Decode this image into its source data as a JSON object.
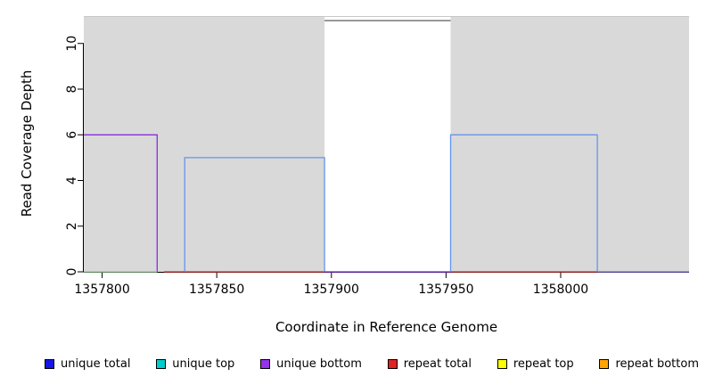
{
  "figure": {
    "xlabel": "Coordinate in Reference Genome",
    "ylabel": "Read Coverage Depth"
  },
  "legend": {
    "items": [
      {
        "label": "unique total",
        "color": "#1515e6"
      },
      {
        "label": "unique top",
        "color": "#00cdcd"
      },
      {
        "label": "unique bottom",
        "color": "#9632e8"
      },
      {
        "label": "repeat total",
        "color": "#e02222"
      },
      {
        "label": "repeat top",
        "color": "#ffff00"
      },
      {
        "label": "repeat bottom",
        "color": "#ffa500"
      }
    ]
  },
  "chart_data": {
    "type": "line",
    "title": "",
    "xlabel": "Coordinate in Reference Genome",
    "ylabel": "Read Coverage Depth",
    "xlim": [
      1357792,
      1358056
    ],
    "ylim": [
      0,
      11.2
    ],
    "x_ticks": [
      1357800,
      1357850,
      1357900,
      1357950,
      1358000
    ],
    "y_ticks": [
      0,
      2,
      4,
      6,
      8,
      10
    ],
    "grid": false,
    "legend_position": "bottom",
    "axis_color": "#000000",
    "plot_background": {
      "color": "#d9d9d9",
      "top_edge_color": "#c8c8c8"
    },
    "white_window": {
      "x0": 1357897,
      "x1": 1357952,
      "y0": 0,
      "y1": 11,
      "top_border_color": "#5a5a5a"
    },
    "series": [
      {
        "name": "unique-bottom-step-6",
        "color": "#8b2be2",
        "points": [
          [
            1357792,
            6
          ],
          [
            1357824,
            6
          ],
          [
            1357824,
            0
          ]
        ]
      },
      {
        "name": "baseline-green-left",
        "color": "#98d898",
        "points": [
          [
            1357792,
            0
          ],
          [
            1357824,
            0
          ]
        ]
      },
      {
        "name": "repeat-total-baseline-left",
        "color": "#e03030",
        "points": [
          [
            1357827,
            0
          ],
          [
            1357897,
            0
          ]
        ]
      },
      {
        "name": "unique-coverage-rect-5",
        "color": "#6495ed",
        "points": [
          [
            1357836,
            0
          ],
          [
            1357836,
            5
          ],
          [
            1357897,
            5
          ],
          [
            1357897,
            0
          ]
        ]
      },
      {
        "name": "gap-baseline-purple",
        "color": "#8b2be2",
        "points": [
          [
            1357897,
            0
          ],
          [
            1357952,
            0
          ]
        ]
      },
      {
        "name": "repeat-total-baseline-right",
        "color": "#e03030",
        "points": [
          [
            1357952,
            0
          ],
          [
            1358016,
            0
          ]
        ]
      },
      {
        "name": "unique-coverage-rect-6",
        "color": "#6495ed",
        "points": [
          [
            1357952,
            0
          ],
          [
            1357952,
            6
          ],
          [
            1358016,
            6
          ],
          [
            1358016,
            0
          ]
        ]
      },
      {
        "name": "baseline-purple-right",
        "color": "#7b68ee",
        "points": [
          [
            1358016,
            0
          ],
          [
            1358056,
            0
          ]
        ]
      },
      {
        "name": "window-top-line-11",
        "color": "#5a5a5a",
        "points": [
          [
            1357897,
            11
          ],
          [
            1357952,
            11
          ]
        ]
      }
    ]
  }
}
